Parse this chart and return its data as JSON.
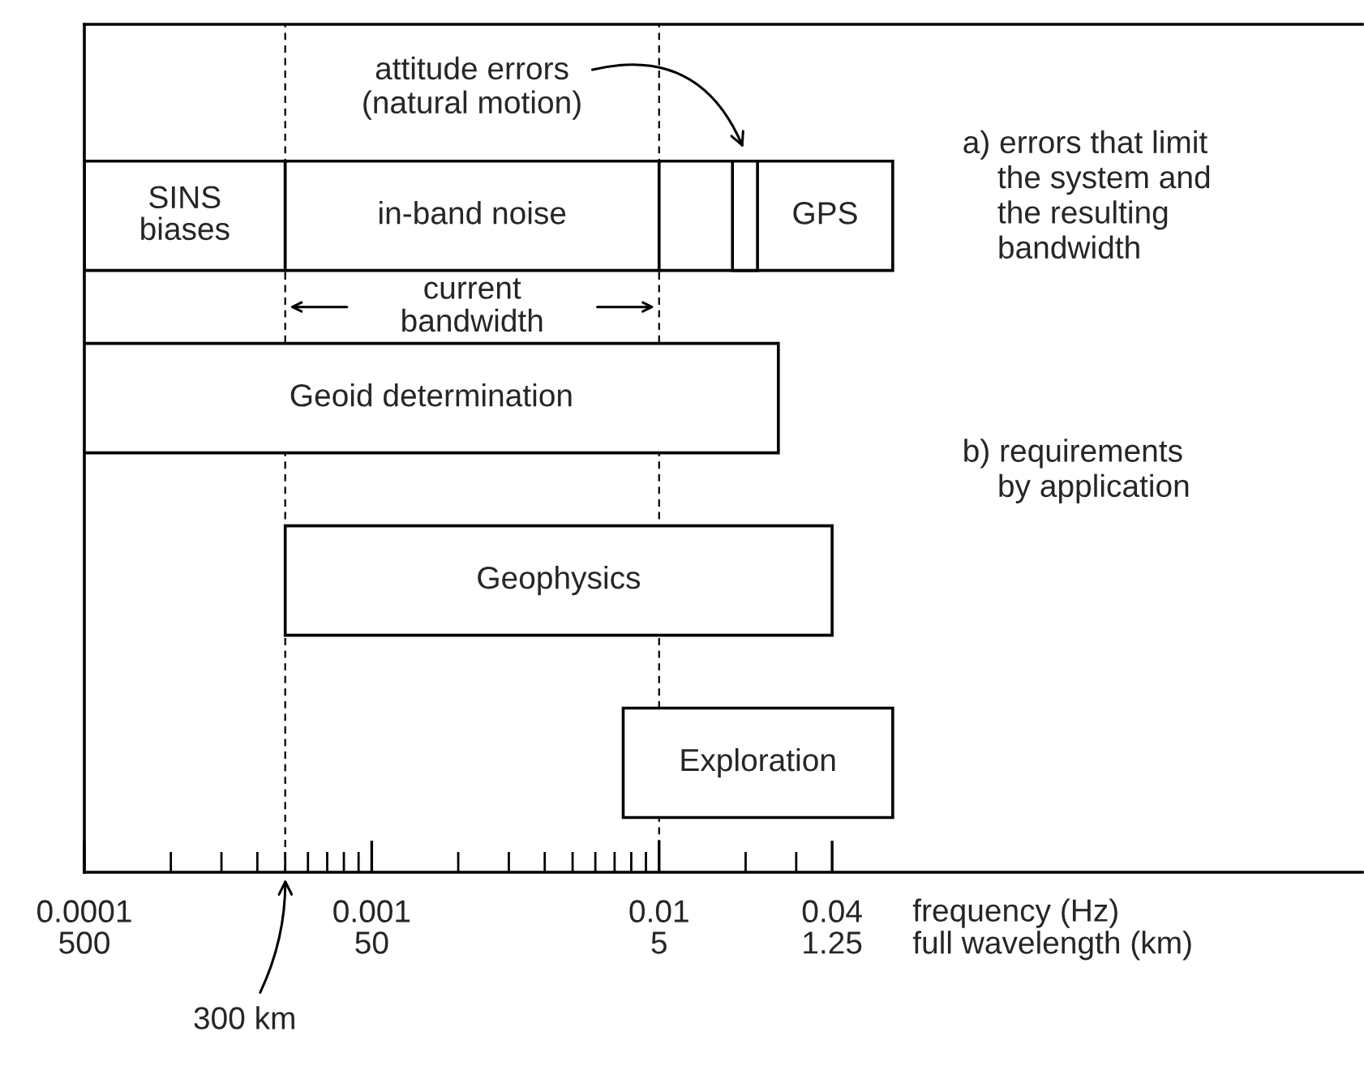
{
  "chart_data": {
    "type": "bar",
    "orientation": "horizontal",
    "log": "x",
    "categories": [
      null,
      null,
      null,
      null
    ],
    "series": [
      {
        "name": "SINS\nbiases",
        "color": "#ffffff",
        "base": [
          0.0001,
          null,
          null,
          null
        ],
        "values": [
          0.0004,
          null,
          null,
          null
        ]
      },
      {
        "name": "in-band noise",
        "color": "#ffffff",
        "base": [
          0.0005,
          null,
          null,
          null
        ],
        "values": [
          0.0095,
          null,
          null,
          null
        ]
      },
      {
        "name": "GPS",
        "color": "#ffffff",
        "base": [
          0.01,
          null,
          null,
          null
        ],
        "values": [
          0.055,
          null,
          null,
          null
        ]
      },
      {
        "color": "#ffffff",
        "base": [
          0.018,
          null,
          null,
          null
        ],
        "values": [
          0.004,
          null,
          null,
          null
        ]
      },
      {
        "name": "Geoid determination",
        "color": "#ffffff",
        "base": [
          null,
          0.0001,
          null,
          null
        ],
        "values": [
          null,
          0.0259,
          null,
          null
        ]
      },
      {
        "name": "Geophysics",
        "color": "#ffffff",
        "base": [
          null,
          null,
          0.0005,
          null
        ],
        "values": [
          null,
          null,
          0.0395,
          null
        ]
      },
      {
        "name": "Exploration",
        "color": "#ffffff",
        "base": [
          null,
          null,
          null,
          0.0075
        ],
        "values": [
          null,
          null,
          null,
          0.0575
        ]
      }
    ],
    "xlim": [
      0.0001,
      2.8
    ],
    "xticks": [
      0.0001,
      {
        "value": 0.0002,
        "label": null
      },
      {
        "value": 0.0003,
        "label": null
      },
      {
        "value": 0.0004,
        "label": null
      },
      {
        "value": 0.0005,
        "label": null
      },
      {
        "value": 0.0006,
        "label": null
      },
      {
        "value": 0.0007,
        "label": null
      },
      {
        "value": 0.0008,
        "label": null
      },
      {
        "value": 0.0009,
        "label": null
      },
      0.001,
      {
        "value": 0.002,
        "label": null
      },
      {
        "value": 0.003,
        "label": null
      },
      {
        "value": 0.004,
        "label": null
      },
      {
        "value": 0.005,
        "label": null
      },
      {
        "value": 0.006,
        "label": null
      },
      {
        "value": 0.007,
        "label": null
      },
      {
        "value": 0.008,
        "label": null
      },
      {
        "value": 0.009,
        "label": null
      },
      0.01,
      {
        "value": 0.02,
        "label": null
      },
      {
        "value": 0.03,
        "label": null
      },
      0.04
    ],
    "xlabel": "frequency (Hz)",
    "ref_lines": [
      {
        "axis": "x",
        "value": 0.0005,
        "label": "300 km",
        "color": "#000000",
        "line_style": "dashed"
      },
      {
        "axis": "x",
        "value": 0.01,
        "color": "#000000",
        "line_style": "dashed"
      }
    ],
    "annotations": [
      "attitude errors\n(natural motion)",
      "current\nbandwidth",
      "a) errors that limit\n    the system and\n    the resulting\n    bandwidth",
      "b) requirements\n    by application",
      "500",
      "50",
      "5",
      "1.25",
      "full wavelength (km)"
    ]
  }
}
